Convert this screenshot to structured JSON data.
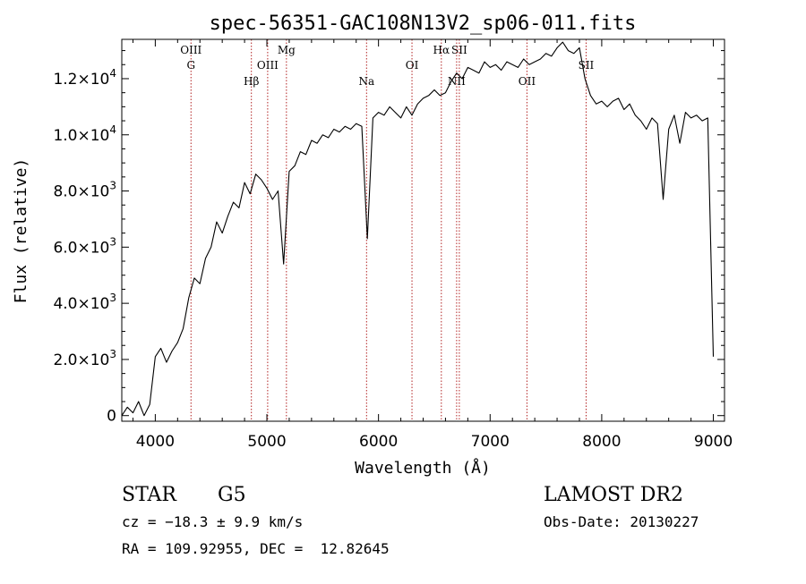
{
  "chart_data": {
    "type": "line",
    "title": "spec-56351-GAC108N13V2_sp06-011.fits",
    "xlabel": "Wavelength (Å)",
    "ylabel": "Flux (relative)",
    "xlim": [
      3700,
      9100
    ],
    "ylim": [
      -200,
      13400
    ],
    "x_ticks": [
      4000,
      5000,
      6000,
      7000,
      8000,
      9000
    ],
    "x_tick_labels": [
      "4000",
      "5000",
      "6000",
      "7000",
      "8000",
      "9000"
    ],
    "y_ticks": [
      0,
      2000,
      4000,
      6000,
      8000,
      10000,
      12000
    ],
    "y_tick_labels": [
      {
        "mant": "0",
        "exp": ""
      },
      {
        "mant": "2.0×10",
        "exp": "3"
      },
      {
        "mant": "4.0×10",
        "exp": "3"
      },
      {
        "mant": "6.0×10",
        "exp": "3"
      },
      {
        "mant": "8.0×10",
        "exp": "3"
      },
      {
        "mant": "1.0×10",
        "exp": "4"
      },
      {
        "mant": "1.2×10",
        "exp": "4"
      }
    ],
    "line_color": "#000000",
    "marker_color": "#b22222",
    "spectrum": {
      "x": [
        3700,
        3750,
        3800,
        3850,
        3900,
        3950,
        4000,
        4050,
        4100,
        4150,
        4200,
        4250,
        4300,
        4350,
        4400,
        4450,
        4500,
        4550,
        4600,
        4650,
        4700,
        4750,
        4800,
        4850,
        4900,
        4950,
        5000,
        5050,
        5100,
        5150,
        5200,
        5250,
        5300,
        5350,
        5400,
        5450,
        5500,
        5550,
        5600,
        5650,
        5700,
        5750,
        5800,
        5850,
        5900,
        5950,
        6000,
        6050,
        6100,
        6150,
        6200,
        6250,
        6300,
        6350,
        6400,
        6450,
        6500,
        6550,
        6600,
        6650,
        6700,
        6750,
        6800,
        6850,
        6900,
        6950,
        7000,
        7050,
        7100,
        7150,
        7200,
        7250,
        7300,
        7350,
        7400,
        7450,
        7500,
        7550,
        7600,
        7650,
        7700,
        7750,
        7800,
        7850,
        7900,
        7950,
        8000,
        8050,
        8100,
        8150,
        8200,
        8250,
        8300,
        8350,
        8400,
        8450,
        8500,
        8550,
        8600,
        8650,
        8700,
        8750,
        8800,
        8850,
        8900,
        8950,
        9000
      ],
      "y": [
        0,
        300,
        100,
        500,
        0,
        400,
        2100,
        2400,
        1900,
        2300,
        2600,
        3100,
        4200,
        4900,
        4700,
        5600,
        6000,
        6900,
        6500,
        7100,
        7600,
        7400,
        8300,
        7900,
        8600,
        8400,
        8100,
        7700,
        8000,
        5400,
        8700,
        8900,
        9400,
        9300,
        9800,
        9700,
        10000,
        9900,
        10200,
        10100,
        10300,
        10200,
        10400,
        10300,
        6300,
        10600,
        10800,
        10700,
        11000,
        10800,
        10600,
        11000,
        10700,
        11100,
        11300,
        11400,
        11600,
        11400,
        11500,
        11900,
        12200,
        12000,
        12400,
        12300,
        12200,
        12600,
        12400,
        12500,
        12300,
        12600,
        12500,
        12400,
        12700,
        12500,
        12600,
        12700,
        12900,
        12800,
        13100,
        13300,
        13000,
        12900,
        13100,
        12000,
        11400,
        11100,
        11200,
        11000,
        11200,
        11300,
        10900,
        11100,
        10700,
        10500,
        10200,
        10600,
        10400,
        7700,
        10200,
        10700,
        9700,
        10800,
        10600,
        10700,
        10500,
        10600,
        2100
      ]
    },
    "line_markers": [
      {
        "name": "OIII",
        "wavelength": 4320,
        "row": 0
      },
      {
        "name": "G",
        "wavelength": 4320,
        "row": 1
      },
      {
        "name": "Hβ",
        "wavelength": 4861,
        "row": 3
      },
      {
        "name": "OIII",
        "wavelength": 5007,
        "row": 2
      },
      {
        "name": "Mg",
        "wavelength": 5175,
        "row": 0
      },
      {
        "name": "Na",
        "wavelength": 5893,
        "row": 3
      },
      {
        "name": "OI",
        "wavelength": 6300,
        "row": 2
      },
      {
        "name": "Hα",
        "wavelength": 6563,
        "row": 0
      },
      {
        "name": "SII",
        "wavelength": 6724,
        "row": 0
      },
      {
        "name": "NII",
        "wavelength": 6700,
        "row": 3
      },
      {
        "name": "OII",
        "wavelength": 7330,
        "row": 3
      },
      {
        "name": "SII",
        "wavelength": 7860,
        "row": 2
      }
    ]
  },
  "info": {
    "object_class": "STAR",
    "subclass": "G5",
    "survey": "LAMOST DR2",
    "cz": "cz = −18.3 ± 9.9 km/s",
    "obs_date": "Obs-Date: 20130227",
    "coords": "RA = 109.92955, DEC =  12.82645"
  }
}
